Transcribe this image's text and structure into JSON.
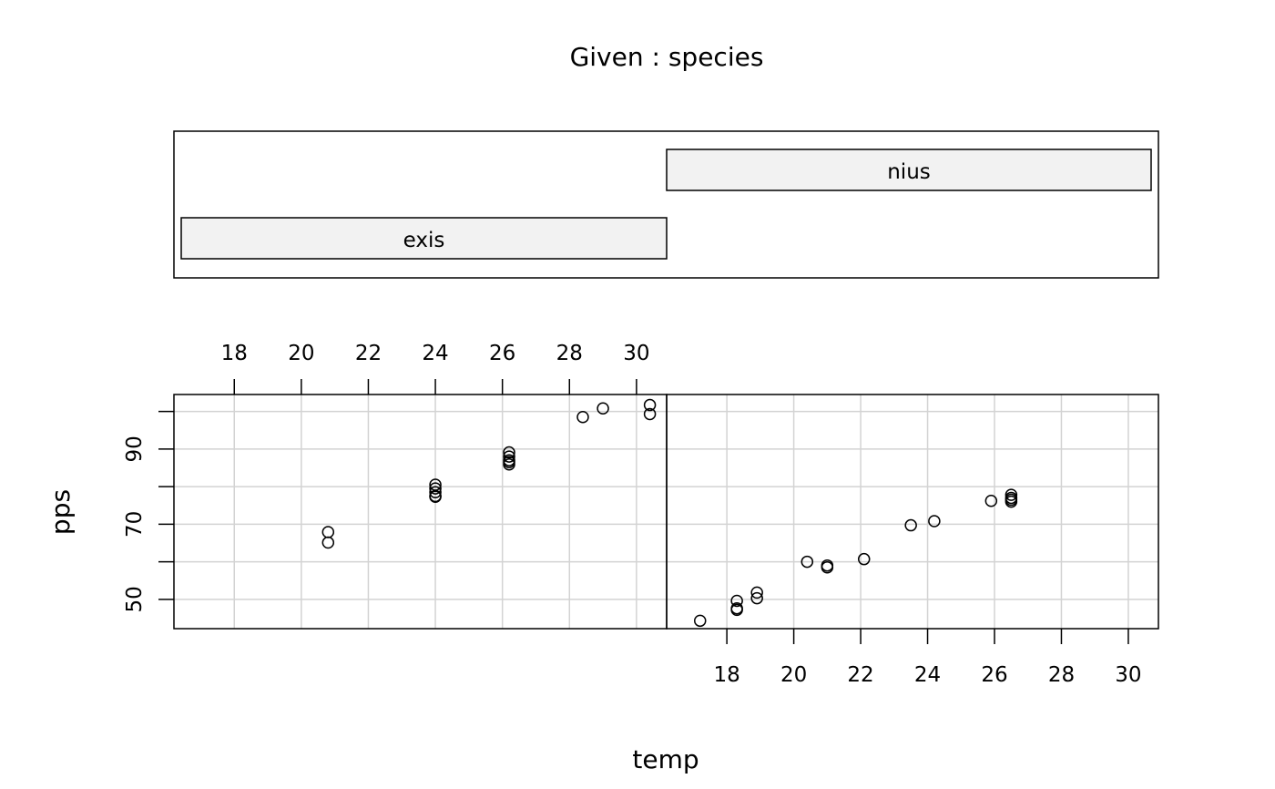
{
  "chart_data": {
    "type": "scatter",
    "title": "Given : species",
    "xlabel": "temp",
    "ylabel": "pps",
    "xlim": [
      16.2,
      30.9
    ],
    "ylim": [
      42.2,
      104.5
    ],
    "x_ticks": [
      18,
      20,
      22,
      24,
      26,
      28,
      30
    ],
    "y_ticks": [
      50,
      60,
      70,
      80,
      90,
      100
    ],
    "y_tick_labels": [
      "50",
      "70",
      "90"
    ],
    "grid": true,
    "colors": {
      "grid": "#d3d3d3",
      "strip_fill": "#f2f2f2",
      "point": "#000000"
    },
    "panels": [
      {
        "name": "exis",
        "x": [
          20.8,
          20.8,
          24.0,
          24.0,
          24.0,
          24.0,
          24.0,
          26.2,
          26.2,
          26.2,
          26.2,
          26.2,
          28.4,
          29.0,
          30.4,
          30.4
        ],
        "y": [
          67.9,
          65.1,
          80.5,
          79.5,
          78.5,
          77.5,
          77.3,
          89.1,
          88.0,
          87.0,
          86.5,
          85.9,
          98.5,
          100.8,
          101.7,
          99.3
        ]
      },
      {
        "name": "nius",
        "x": [
          17.2,
          18.3,
          18.3,
          18.3,
          18.9,
          18.9,
          20.4,
          21.0,
          21.0,
          22.1,
          23.5,
          24.2,
          25.9,
          26.5,
          26.5,
          26.5,
          26.5
        ],
        "y": [
          44.3,
          47.2,
          47.6,
          49.6,
          50.3,
          51.8,
          60.0,
          58.5,
          59.0,
          60.7,
          69.7,
          70.8,
          76.2,
          77.8,
          77.0,
          76.5,
          76.0
        ]
      }
    ]
  }
}
